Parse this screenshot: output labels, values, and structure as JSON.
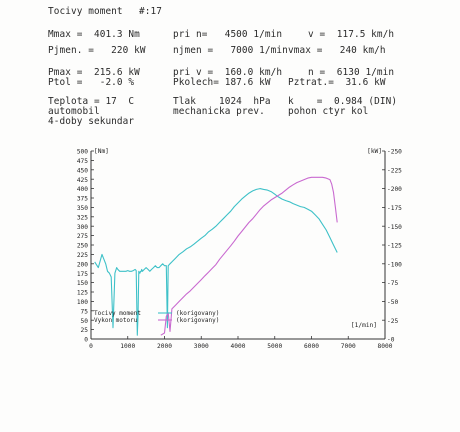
{
  "header": {
    "title": "Tocivy moment",
    "run_no": "#:17"
  },
  "specs": {
    "mmax": "Mmax =  401.3 Nm",
    "pri_n": "pri n=   4500 1/min",
    "v": "v =  117.5 km/h",
    "pjmen": "Pjmen. =   220 kW",
    "njmen": "njmen =   7000 1/min",
    "vmax": "vmax =   240 km/h",
    "pmax": "Pmax =  215.6 kW",
    "pri_v": "pri v =  160.0 km/h",
    "n": "n =  6130 1/min",
    "ptol": "Ptol =   -2.0 %",
    "pkolech": "Pkolech= 187.6 kW",
    "pztrat": "Pztrat.=  31.6 kW",
    "teplota": "Teplota = 17  C",
    "tlak": "Tlak    1024  hPa",
    "k": "k    =  0.984 (DIN)",
    "vehicle": "automobil",
    "prev": "mechanicka prev.",
    "pohon": "pohon ctyr kol",
    "gearbox": "4-doby sekundar"
  },
  "chart_data": {
    "type": "line",
    "x_unit": "[1/min]",
    "y_left_unit": "[Nm]",
    "y_right_unit": "[kW]",
    "xlim": [
      0,
      8000
    ],
    "ylim_left": [
      0,
      500
    ],
    "ylim_right": [
      0,
      250
    ],
    "x_ticks": [
      "0",
      "1000",
      "2000",
      "3000",
      "4000",
      "5000",
      "6000",
      "7000",
      "8000"
    ],
    "y_left_ticks": [
      "0",
      "25",
      "50",
      "75",
      "100",
      "125",
      "150",
      "175",
      "200",
      "225",
      "250",
      "275",
      "300",
      "325",
      "350",
      "375",
      "400",
      "425",
      "450",
      "475",
      "500"
    ],
    "y_right_ticks": [
      "0",
      "25",
      "50",
      "75",
      "100",
      "125",
      "150",
      "175",
      "200",
      "225",
      "250"
    ],
    "grid": false,
    "legend": [
      {
        "name": "Tocivy moment",
        "tag": "(korigovany)",
        "color": "#3ec1c8"
      },
      {
        "name": "Vykon motoru",
        "tag": "(korigovany)",
        "color": "#c96ad0"
      }
    ],
    "series": [
      {
        "axis": "left",
        "color": "#3ec1c8",
        "x": [
          100,
          200,
          300,
          400,
          450,
          500,
          550,
          600,
          650,
          700,
          730,
          750,
          780,
          800,
          830,
          880,
          950,
          1000,
          1050,
          1100,
          1150,
          1200,
          1230,
          1260,
          1280,
          1300,
          1330,
          1350,
          1370,
          1380,
          1400,
          1450,
          1500,
          1550,
          1600,
          1650,
          1700,
          1750,
          1800,
          1850,
          1900,
          1950,
          2000,
          2050,
          2080,
          2100,
          2150,
          2200,
          2300,
          2400,
          2500,
          2600,
          2700,
          2800,
          2900,
          3000,
          3100,
          3200,
          3300,
          3400,
          3500,
          3600,
          3700,
          3800,
          3900,
          4000,
          4100,
          4200,
          4300,
          4400,
          4500,
          4600,
          4700,
          4800,
          4900,
          5000,
          5100,
          5200,
          5300,
          5400,
          5500,
          5600,
          5700,
          5800,
          5900,
          6000,
          6100,
          6200,
          6300,
          6400,
          6500,
          6600,
          6700
        ],
        "y": [
          205,
          190,
          225,
          200,
          180,
          175,
          165,
          30,
          175,
          190,
          185,
          183,
          180,
          180,
          180,
          180,
          180,
          182,
          180,
          180,
          182,
          185,
          182,
          10,
          60,
          180,
          175,
          180,
          180,
          185,
          180,
          185,
          190,
          185,
          180,
          185,
          190,
          195,
          190,
          190,
          195,
          200,
          195,
          195,
          30,
          195,
          200,
          205,
          215,
          225,
          232,
          240,
          245,
          252,
          260,
          268,
          275,
          285,
          292,
          300,
          310,
          320,
          330,
          340,
          352,
          362,
          372,
          380,
          388,
          394,
          398,
          400,
          398,
          396,
          392,
          385,
          378,
          372,
          368,
          365,
          360,
          356,
          352,
          350,
          345,
          340,
          330,
          320,
          305,
          290,
          270,
          250,
          230
        ]
      },
      {
        "axis": "right",
        "color": "#c96ad0",
        "x": [
          1900,
          2000,
          2050,
          2100,
          2150,
          2200,
          2300,
          2400,
          2500,
          2600,
          2700,
          2800,
          2900,
          3000,
          3100,
          3200,
          3300,
          3400,
          3500,
          3600,
          3700,
          3800,
          3900,
          4000,
          4100,
          4200,
          4300,
          4400,
          4500,
          4600,
          4700,
          4800,
          4900,
          5000,
          5100,
          5200,
          5300,
          5400,
          5500,
          5600,
          5700,
          5800,
          5900,
          6000,
          6100,
          6200,
          6300,
          6400,
          6500,
          6550,
          6600,
          6650,
          6700
        ],
        "y": [
          5,
          8,
          30,
          35,
          10,
          40,
          45,
          50,
          55,
          60,
          64,
          69,
          74,
          79,
          84,
          89,
          94,
          99,
          106,
          112,
          118,
          124,
          130,
          137,
          143,
          149,
          155,
          160,
          166,
          172,
          177,
          181,
          185,
          188,
          191,
          194,
          198,
          202,
          205,
          208,
          210,
          212,
          214,
          215,
          215,
          215,
          215,
          214,
          212,
          206,
          195,
          175,
          155
        ]
      }
    ]
  }
}
